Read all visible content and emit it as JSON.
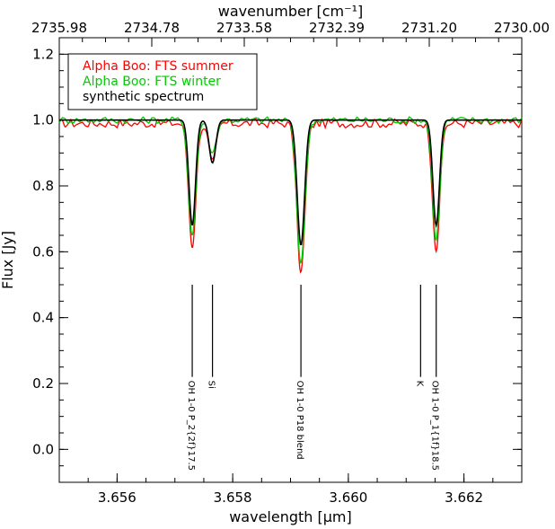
{
  "chart_data": {
    "type": "line",
    "xlabel": "wavelength [μm]",
    "xlabel_top": "wavenumber [cm⁻¹]",
    "ylabel": "Flux [Jy]",
    "xlim": [
      3.655,
      3.663
    ],
    "ylim": [
      -0.1,
      1.25
    ],
    "x_ticks": [
      3.656,
      3.658,
      3.66,
      3.662
    ],
    "x_tick_labels": [
      "3.656",
      "3.658",
      "3.660",
      "3.662"
    ],
    "y_ticks": [
      0.0,
      0.2,
      0.4,
      0.6,
      0.8,
      1.0,
      1.2
    ],
    "y_tick_labels": [
      "0.0",
      "0.2",
      "0.4",
      "0.6",
      "0.8",
      "1.0",
      "1.2"
    ],
    "top_tick_labels": [
      "2735.98",
      "2734.78",
      "2733.58",
      "2732.39",
      "2731.20",
      "2730.00"
    ],
    "legend": {
      "position": "top-left",
      "entries": [
        {
          "label": "Alpha Boo: FTS summer",
          "color": "#ff0000"
        },
        {
          "label": "Alpha Boo: FTS winter",
          "color": "#00cc00"
        },
        {
          "label": "synthetic spectrum",
          "color": "#000000"
        }
      ]
    },
    "series": [
      {
        "name": "Alpha Boo: FTS summer",
        "color": "#ff0000",
        "continuum": 0.99,
        "lines": [
          {
            "center": 3.6573,
            "depth": 0.37,
            "width": 9e-05
          },
          {
            "center": 3.65765,
            "depth": 0.12,
            "width": 9e-05
          },
          {
            "center": 3.65918,
            "depth": 0.45,
            "width": 0.0001
          },
          {
            "center": 3.66152,
            "depth": 0.38,
            "width": 9e-05
          }
        ]
      },
      {
        "name": "Alpha Boo: FTS winter",
        "color": "#00cc00",
        "continuum": 1.0,
        "lines": [
          {
            "center": 3.6573,
            "depth": 0.35,
            "width": 9e-05
          },
          {
            "center": 3.65765,
            "depth": 0.1,
            "width": 9e-05
          },
          {
            "center": 3.65918,
            "depth": 0.43,
            "width": 0.0001
          },
          {
            "center": 3.66152,
            "depth": 0.36,
            "width": 9e-05
          }
        ]
      },
      {
        "name": "synthetic spectrum",
        "color": "#000000",
        "continuum": 1.0,
        "lines": [
          {
            "center": 3.6573,
            "depth": 0.32,
            "width": 8e-05
          },
          {
            "center": 3.65765,
            "depth": 0.13,
            "width": 8e-05
          },
          {
            "center": 3.65918,
            "depth": 0.38,
            "width": 9e-05
          },
          {
            "center": 3.66152,
            "depth": 0.32,
            "width": 8e-05
          }
        ]
      }
    ],
    "line_ids": [
      {
        "x": 3.6573,
        "label": "OH 1-0 P_2{2f}17.5"
      },
      {
        "x": 3.65765,
        "label": "Si"
      },
      {
        "x": 3.65918,
        "label": "OH 1-0 P18 blend"
      },
      {
        "x": 3.66125,
        "label": "K"
      },
      {
        "x": 3.66152,
        "label": "OH 1-0 P_1{1f}18.5"
      }
    ],
    "line_id_y_range": [
      0.22,
      0.5
    ]
  }
}
